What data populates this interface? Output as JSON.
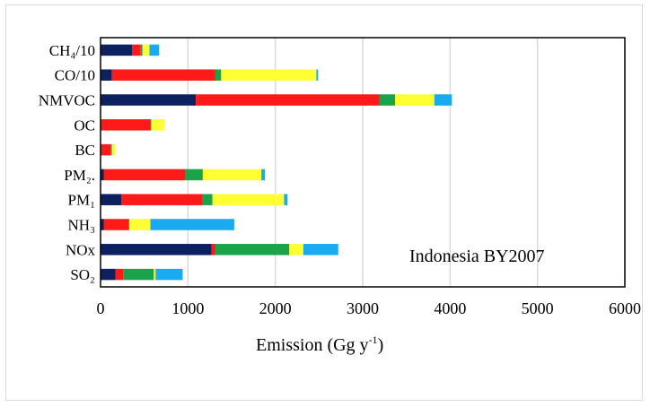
{
  "chart_data": {
    "type": "bar",
    "orientation": "horizontal",
    "stacked": true,
    "categories": [
      "CH₄/10",
      "CO/10",
      "NMVOC",
      "OC",
      "BC",
      "PM₂.",
      "PM₁",
      "NH₃",
      "NOx",
      "SO₂"
    ],
    "series": [
      {
        "color": "#0d2060",
        "values": [
          360,
          130,
          1090,
          0,
          0,
          40,
          240,
          40,
          1270,
          170
        ]
      },
      {
        "color": "#ff1a1a",
        "values": [
          100,
          1180,
          2100,
          570,
          120,
          930,
          930,
          280,
          40,
          90
        ]
      },
      {
        "color": "#1aa34a",
        "values": [
          20,
          70,
          180,
          10,
          10,
          200,
          110,
          10,
          850,
          350
        ]
      },
      {
        "color": "#ffff33",
        "values": [
          80,
          1090,
          450,
          150,
          40,
          670,
          820,
          240,
          160,
          20
        ]
      },
      {
        "color": "#19aaf0",
        "values": [
          110,
          20,
          200,
          0,
          0,
          40,
          40,
          960,
          400,
          310
        ]
      }
    ],
    "xlabel": "Emission (Gg y",
    "xlabel_sup": "-1",
    "xlabel_tail": ")",
    "xlim": [
      0,
      6000
    ],
    "xticks": [
      "0",
      "1000",
      "2000",
      "3000",
      "4000",
      "5000",
      "6000"
    ],
    "xtick_values": [
      0,
      1000,
      2000,
      3000,
      4000,
      5000,
      6000
    ],
    "grid": "vertical",
    "annotation": "Indonesia BY2007"
  }
}
